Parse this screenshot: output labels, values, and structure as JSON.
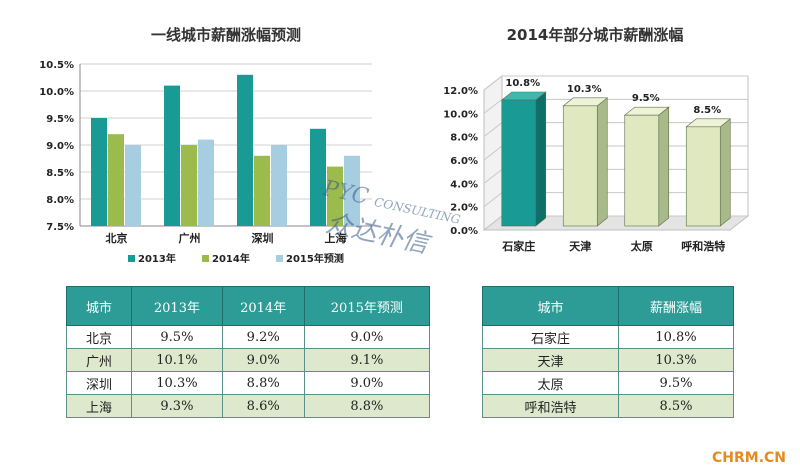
{
  "chart_data": [
    {
      "type": "bar",
      "title": "一线城市薪酬涨幅预测",
      "categories": [
        "北京",
        "广州",
        "深圳",
        "上海"
      ],
      "series": [
        {
          "name": "2013年",
          "values": [
            9.5,
            10.1,
            10.3,
            9.3
          ]
        },
        {
          "name": "2014年",
          "values": [
            9.2,
            9.0,
            8.8,
            8.6
          ]
        },
        {
          "name": "2015年预测",
          "values": [
            9.0,
            9.1,
            9.0,
            8.8
          ]
        }
      ],
      "yticks": [
        "7.5%",
        "8.0%",
        "8.5%",
        "9.0%",
        "9.5%",
        "10.0%",
        "10.5%"
      ],
      "ylim": [
        7.5,
        10.5
      ],
      "legend": "bottom",
      "grid": true,
      "colors": [
        "#1a9a94",
        "#9bbb4c",
        "#a6cee0"
      ]
    },
    {
      "type": "bar",
      "title": "2014年部分城市薪酬涨幅",
      "categories": [
        "石家庄",
        "天津",
        "太原",
        "呼和浩特"
      ],
      "values": [
        10.8,
        10.3,
        9.5,
        8.5
      ],
      "data_labels": [
        "10.8%",
        "10.3%",
        "9.5%",
        "8.5%"
      ],
      "yticks": [
        "0.0%",
        "2.0%",
        "4.0%",
        "6.0%",
        "8.0%",
        "10.0%",
        "12.0%"
      ],
      "ylim": [
        0,
        12
      ],
      "grid": true,
      "colors": {
        "highlight": "#1a9a94",
        "bars": "#dfe8bf"
      }
    }
  ],
  "table_left": {
    "headers": [
      "城市",
      "2013年",
      "2014年",
      "2015年预测"
    ],
    "rows": [
      [
        "北京",
        "9.5%",
        "9.2%",
        "9.0%"
      ],
      [
        "广州",
        "10.1%",
        "9.0%",
        "9.1%"
      ],
      [
        "深圳",
        "10.3%",
        "8.8%",
        "9.0%"
      ],
      [
        "上海",
        "9.3%",
        "8.6%",
        "8.8%"
      ]
    ]
  },
  "table_right": {
    "headers": [
      "城市",
      "薪酬涨幅"
    ],
    "rows": [
      [
        "石家庄",
        "10.8%"
      ],
      [
        "天津",
        "10.3%"
      ],
      [
        "太原",
        "9.5%"
      ],
      [
        "呼和浩特",
        "8.5%"
      ]
    ]
  },
  "watermark": {
    "line1": "PYC",
    "line2": "CONSULTING",
    "line3": "众达朴信"
  },
  "footer": "CHRM.CN"
}
